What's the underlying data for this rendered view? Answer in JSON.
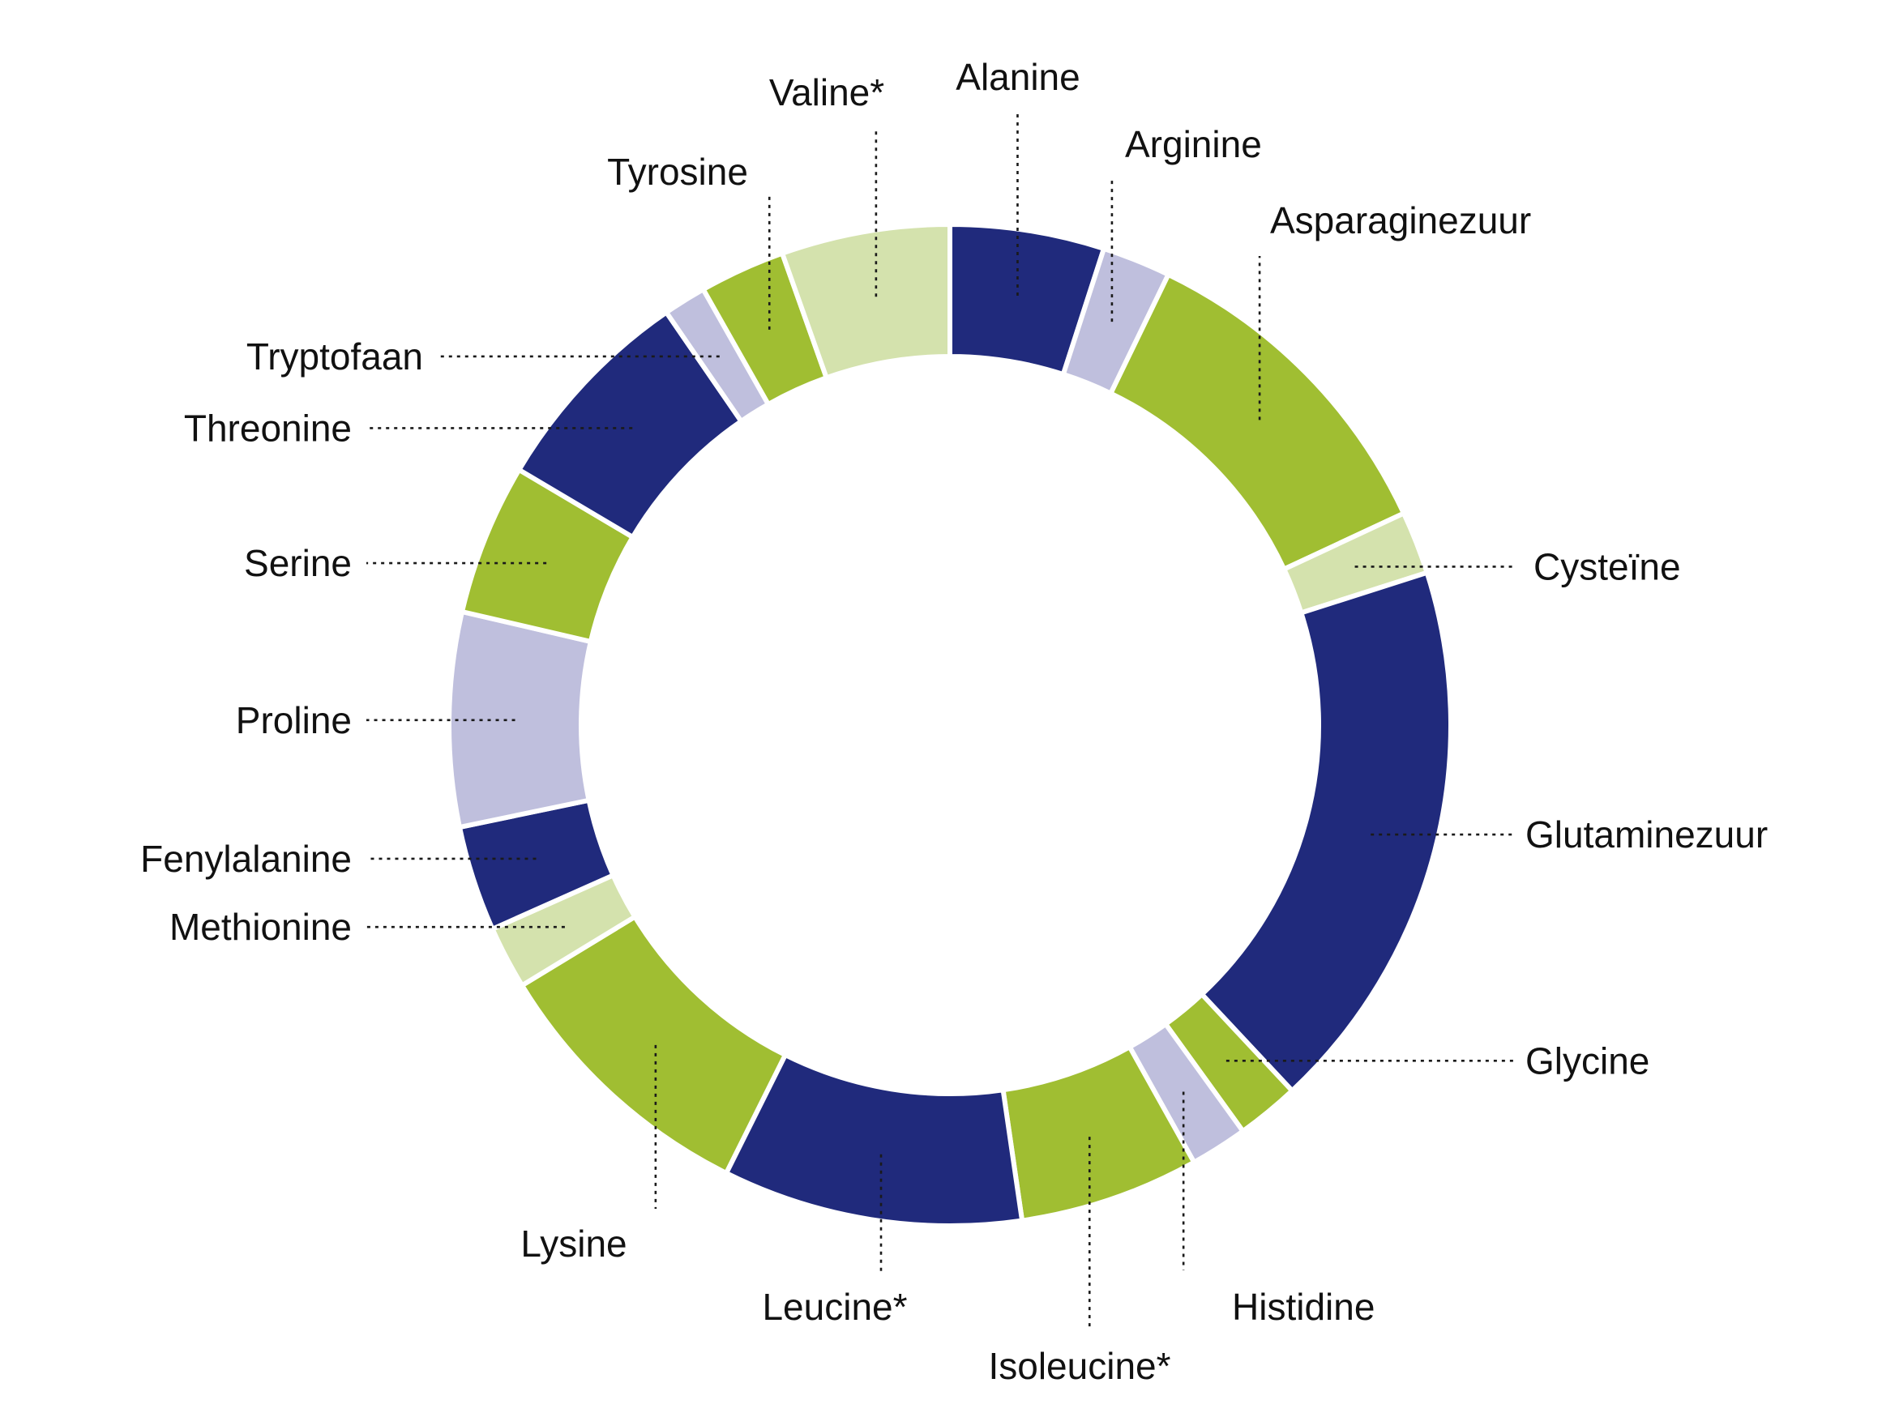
{
  "chart_data": {
    "type": "pie",
    "variant": "donut",
    "title": "",
    "colors": {
      "navy": "#202a7c",
      "green": "#a0be32",
      "lavender": "#bfbfdd",
      "palegreen": "#d4e2ad"
    },
    "slices": [
      {
        "label": "Alanine",
        "value": 5.4,
        "color": "navy"
      },
      {
        "label": "Arginine",
        "value": 2.4,
        "color": "lavender"
      },
      {
        "label": "Asparaginezuur",
        "value": 11.8,
        "color": "green"
      },
      {
        "label": "Cysteïne",
        "value": 2.2,
        "color": "palegreen"
      },
      {
        "label": "Glutaminezuur",
        "value": 19.5,
        "color": "navy"
      },
      {
        "label": "Glycine",
        "value": 2.2,
        "color": "green"
      },
      {
        "label": "Histidine",
        "value": 2.0,
        "color": "lavender"
      },
      {
        "label": "Isoleucine*",
        "value": 6.3,
        "color": "green"
      },
      {
        "label": "Leucine*",
        "value": 10.5,
        "color": "navy"
      },
      {
        "label": "Lysine",
        "value": 9.7,
        "color": "green"
      },
      {
        "label": "Methionine",
        "value": 2.2,
        "color": "palegreen"
      },
      {
        "label": "Fenylalanine",
        "value": 3.7,
        "color": "navy"
      },
      {
        "label": "Proline",
        "value": 7.5,
        "color": "lavender"
      },
      {
        "label": "Serine",
        "value": 5.3,
        "color": "green"
      },
      {
        "label": "Threonine",
        "value": 7.5,
        "color": "navy"
      },
      {
        "label": "Tryptofaan",
        "value": 1.5,
        "color": "lavender"
      },
      {
        "label": "Tyrosine",
        "value": 3.0,
        "color": "green"
      },
      {
        "label": "Valine*",
        "value": 5.9,
        "color": "palegreen"
      }
    ]
  }
}
